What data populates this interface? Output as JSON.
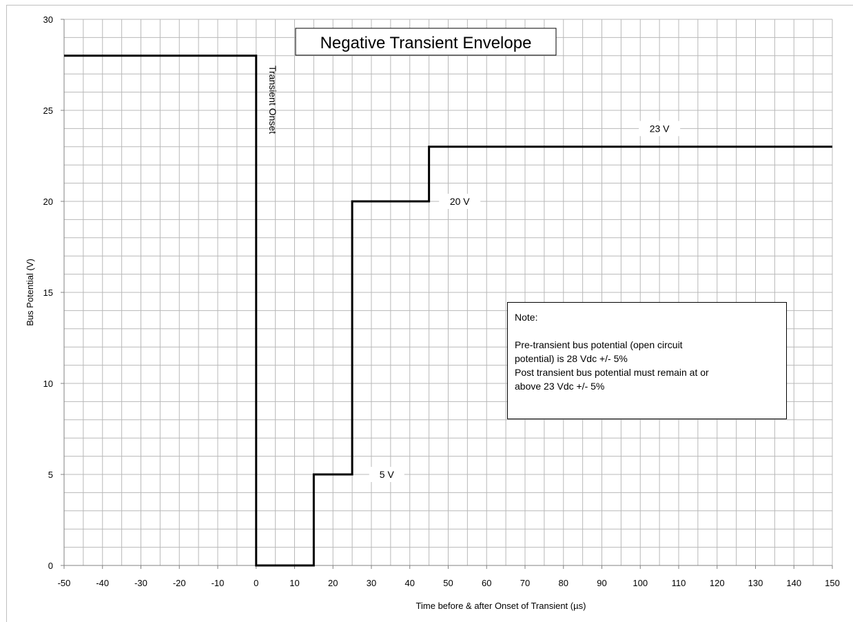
{
  "chart_data": {
    "type": "line",
    "title": "Negative Transient Envelope",
    "xlabel": "Time before & after Onset of Transient (µs)",
    "ylabel": "Bus Potential (V)",
    "xlim": [
      -50,
      150
    ],
    "ylim": [
      0,
      30
    ],
    "x_ticks": [
      -50,
      -40,
      -30,
      -20,
      -10,
      0,
      10,
      20,
      30,
      40,
      50,
      60,
      70,
      80,
      90,
      100,
      110,
      120,
      130,
      140,
      150
    ],
    "y_ticks": [
      0,
      5,
      10,
      15,
      20,
      25,
      30
    ],
    "x_minor_step": 5,
    "y_minor_step": 1,
    "grid": true,
    "series": [
      {
        "points": [
          [
            -50,
            28
          ],
          [
            0,
            28
          ],
          [
            0,
            0
          ],
          [
            15,
            0
          ],
          [
            15,
            5
          ],
          [
            25,
            5
          ],
          [
            25,
            20
          ],
          [
            45,
            20
          ],
          [
            45,
            23
          ],
          [
            150,
            23
          ]
        ],
        "color": "#000000"
      }
    ],
    "annotations": [
      {
        "text": "Transient Onset",
        "x": 0,
        "y": 27,
        "orientation": "vertical"
      },
      {
        "text": "5 V",
        "x": 34,
        "y": 5
      },
      {
        "text": "20 V",
        "x": 53,
        "y": 20
      },
      {
        "text": "23 V",
        "x": 105,
        "y": 24
      }
    ],
    "note": {
      "title": "Note:",
      "lines": [
        "Pre-transient bus potential (open circuit",
        "potential) is 28 Vdc +/- 5%",
        "Post transient bus potential must remain at or",
        "above 23 Vdc +/- 5%"
      ]
    }
  }
}
